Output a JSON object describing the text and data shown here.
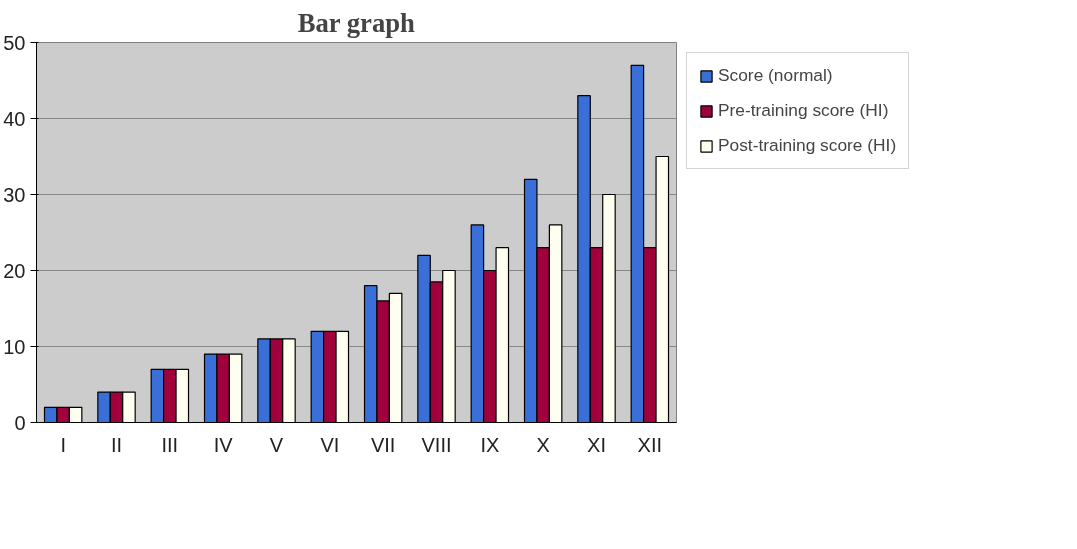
{
  "chart_data": {
    "type": "bar",
    "title": "Bar graph",
    "categories": [
      "I",
      "II",
      "III",
      "IV",
      "V",
      "VI",
      "VII",
      "VIII",
      "IX",
      "X",
      "XI",
      "XII"
    ],
    "series": [
      {
        "name": "Score (normal)",
        "color": "#3a6fd8",
        "values": [
          2,
          4,
          7,
          9,
          11,
          12,
          18,
          22,
          26,
          32,
          43,
          47
        ]
      },
      {
        "name": "Pre-training score (HI)",
        "color": "#a0003c",
        "values": [
          2,
          4,
          7,
          9,
          11,
          12,
          16,
          18.5,
          20,
          23,
          23,
          23
        ]
      },
      {
        "name": "Post-training score (HI)",
        "color": "#fffff0",
        "values": [
          2,
          4,
          7,
          9,
          11,
          12,
          17,
          20,
          23,
          26,
          30,
          35
        ]
      }
    ],
    "ylim": [
      0,
      50
    ],
    "yticks": [
      0,
      10,
      20,
      30,
      40,
      50
    ],
    "grid": "y",
    "legend": "right"
  }
}
